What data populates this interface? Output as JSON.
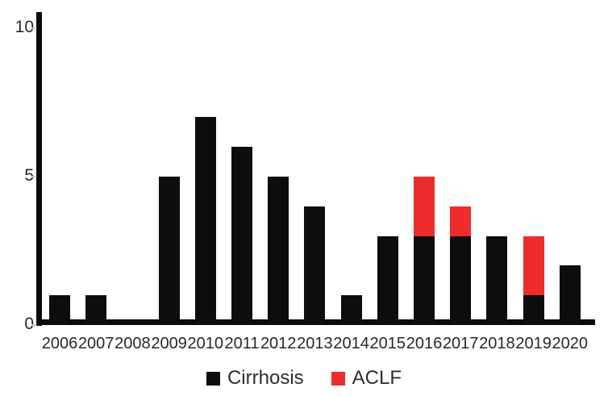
{
  "chart_data": {
    "type": "bar",
    "stacked": true,
    "title": "",
    "xlabel": "",
    "ylabel": "",
    "categories": [
      "2006",
      "2007",
      "2008",
      "2009",
      "2010",
      "2011",
      "2012",
      "2013",
      "2014",
      "2015",
      "2016",
      "2017",
      "2018",
      "2019",
      "2020"
    ],
    "series": [
      {
        "name": "Cirrhosis",
        "color": "#0d0d0e",
        "values": [
          1,
          1,
          0,
          5,
          7,
          6,
          5,
          4,
          1,
          3,
          3,
          3,
          3,
          1,
          2
        ]
      },
      {
        "name": "ACLF",
        "color": "#ee2c2c",
        "values": [
          0,
          0,
          0,
          0,
          0,
          0,
          0,
          0,
          0,
          0,
          2,
          1,
          0,
          2,
          0
        ]
      }
    ],
    "yticks": [
      0,
      5,
      10
    ],
    "ylim": [
      0,
      10
    ],
    "grid": false,
    "legend_position": "bottom"
  },
  "colors": {
    "axis": "#0b0b0b",
    "text": "#26282b",
    "tick": "#c4c9d2",
    "background": "#ffffff"
  }
}
